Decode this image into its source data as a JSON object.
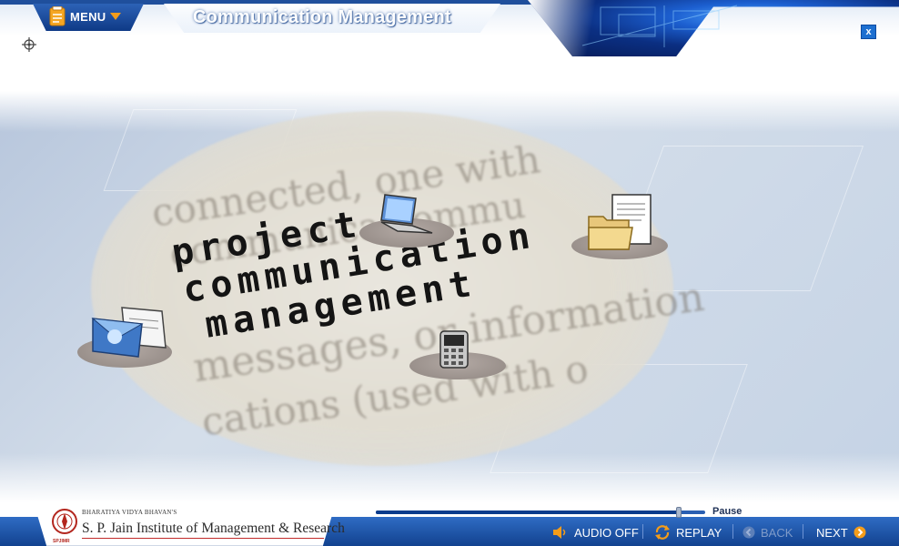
{
  "header": {
    "menu_label": "MENU",
    "title": "Communication Management",
    "close_label": "x"
  },
  "content": {
    "headline": [
      "project",
      "communication",
      "management"
    ],
    "background_text": [
      "connected, one with",
      "communica    commu",
      "messages, or information",
      "cations (used with o"
    ],
    "icons": [
      "laptop-icon",
      "documents-folder-icon",
      "email-icon",
      "mobile-phone-icon"
    ]
  },
  "footer": {
    "logo_sub": "BHARATIYA VIDYA BHAVAN'S",
    "logo_name": "S. P. Jain Institute of Management & Research",
    "seal_text": "SPJIMR",
    "pause_label": "Pause",
    "progress": 0.92,
    "audio_label": "AUDIO OFF",
    "replay_label": "REPLAY",
    "back_label": "BACK",
    "next_label": "NEXT"
  },
  "colors": {
    "header_blue": "#1f4f9c",
    "menu_caret": "#f39c1a",
    "footer_blue": "#12428f",
    "next_accent": "#f39c1a"
  }
}
